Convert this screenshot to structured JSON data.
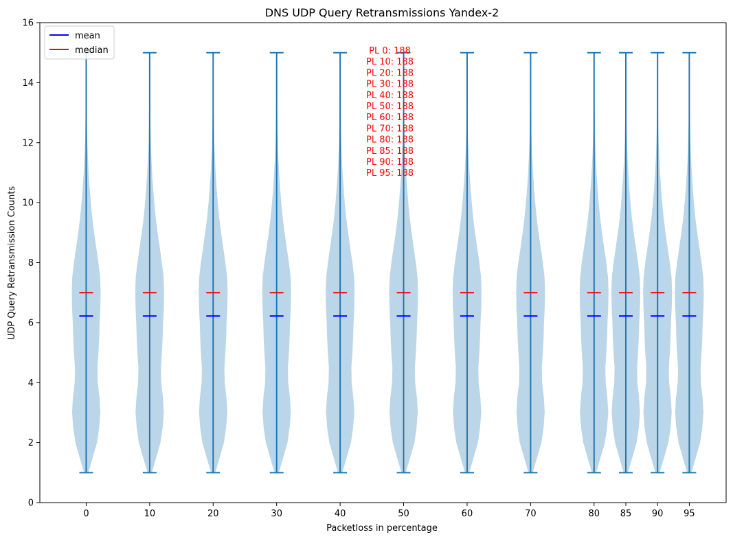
{
  "chart_data": {
    "type": "violin",
    "title": "DNS UDP Query Retransmissions Yandex-2",
    "xlabel": "Packetloss in percentage",
    "ylabel": "UDP Query Retransmission Counts",
    "ylim": [
      0,
      16
    ],
    "yticks": [
      0,
      2,
      4,
      6,
      8,
      10,
      12,
      14,
      16
    ],
    "positions": [
      0,
      10,
      20,
      30,
      40,
      50,
      60,
      70,
      80,
      85,
      90,
      95
    ],
    "tick_labels": [
      "0",
      "10",
      "20",
      "30",
      "40",
      "50",
      "60",
      "70",
      "80",
      "85",
      "90",
      "95"
    ],
    "min": 1,
    "max": 15,
    "mean": 6.22,
    "median": 7,
    "density_profile": [
      [
        1.0,
        0.15
      ],
      [
        1.5,
        0.45
      ],
      [
        2.0,
        0.75
      ],
      [
        2.5,
        0.9
      ],
      [
        3.0,
        0.98
      ],
      [
        3.5,
        0.92
      ],
      [
        4.0,
        0.8
      ],
      [
        4.5,
        0.78
      ],
      [
        5.0,
        0.85
      ],
      [
        5.5,
        0.9
      ],
      [
        6.0,
        0.93
      ],
      [
        6.5,
        0.98
      ],
      [
        7.0,
        1.0
      ],
      [
        7.5,
        0.97
      ],
      [
        8.0,
        0.85
      ],
      [
        8.5,
        0.7
      ],
      [
        9.0,
        0.55
      ],
      [
        9.5,
        0.42
      ],
      [
        10.0,
        0.32
      ],
      [
        10.5,
        0.24
      ],
      [
        11.0,
        0.17
      ],
      [
        11.5,
        0.12
      ],
      [
        12.0,
        0.08
      ],
      [
        12.5,
        0.055
      ],
      [
        13.0,
        0.04
      ],
      [
        13.5,
        0.03
      ],
      [
        14.0,
        0.022
      ],
      [
        14.5,
        0.018
      ],
      [
        15.0,
        0.015
      ]
    ],
    "annotations": [
      "PL 0: 188",
      "PL 10: 188",
      "PL 20: 188",
      "PL 30: 188",
      "PL 40: 188",
      "PL 50: 188",
      "PL 60: 188",
      "PL 70: 188",
      "PL 80: 188",
      "PL 85: 188",
      "PL 90: 188",
      "PL 95: 188"
    ],
    "legend": {
      "placement": "upper-left",
      "entries": [
        {
          "label": "mean",
          "color": "#0000ff"
        },
        {
          "label": "median",
          "color": "#ff0000"
        }
      ]
    },
    "colors": {
      "violin_fill": "#1f77b4",
      "violin_fill_opacity": 0.3,
      "line": "#1f77b4",
      "mean": "#0000ff",
      "median": "#ff0000",
      "annotation": "#ff0000"
    }
  }
}
